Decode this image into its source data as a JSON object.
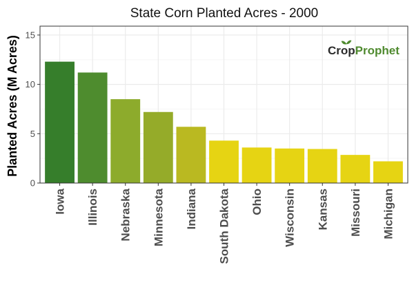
{
  "chart_data": {
    "type": "bar",
    "title": "State Corn Planted Acres - 2000",
    "xlabel": "",
    "ylabel": "Planted Acres (M Acres)",
    "ylim": [
      0,
      15.9
    ],
    "yticks": [
      0,
      5,
      10,
      15
    ],
    "grid": true,
    "legend": "none",
    "categories": [
      "Iowa",
      "Illinois",
      "Nebraska",
      "Minnesota",
      "Indiana",
      "South Dakota",
      "Ohio",
      "Wisconsin",
      "Kansas",
      "Missouri",
      "Michigan"
    ],
    "values": [
      12.3,
      11.2,
      8.5,
      7.2,
      5.7,
      4.3,
      3.6,
      3.5,
      3.45,
      2.85,
      2.2
    ],
    "colors": [
      "#367e2b",
      "#4e8c2e",
      "#8dab2c",
      "#95ab29",
      "#bab921",
      "#e6d413",
      "#e6d413",
      "#e6d413",
      "#e6d413",
      "#e6d413",
      "#e6d413"
    ]
  },
  "logo": {
    "name": "CropProphet",
    "crop": "Crop",
    "prophet": "Prophet",
    "crop_color": "#2b2b2b",
    "prophet_color": "#4f8a2f"
  },
  "colors": {
    "grid_major": "#ebebeb",
    "grid_minor": "#f5f5f5",
    "panel_border": "#333333"
  }
}
